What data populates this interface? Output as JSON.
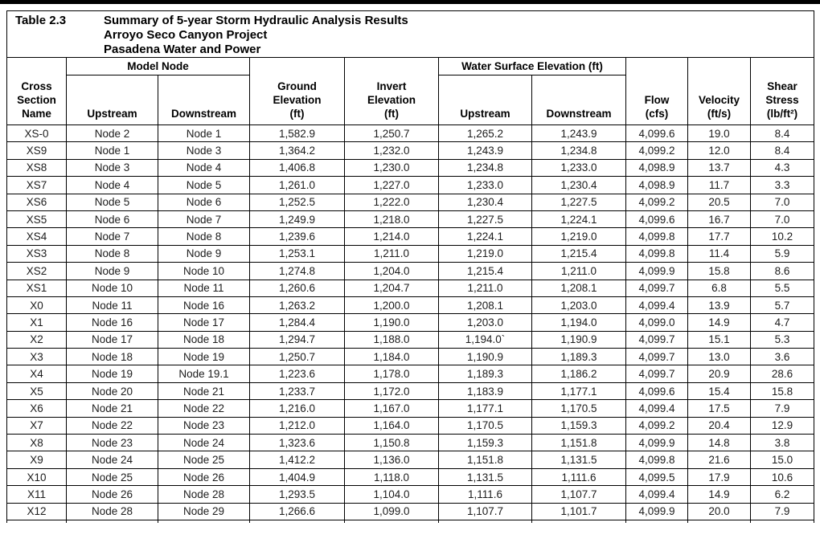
{
  "title_block": {
    "label": "Table 2.3",
    "lines": [
      "Summary of 5-year Storm Hydraulic Analysis Results",
      "Arroyo Seco Canyon Project",
      "Pasadena Water and Power"
    ]
  },
  "header": {
    "cross_section": "Cross\nSection\nName",
    "model_node": "Model Node",
    "upstream": "Upstream",
    "downstream": "Downstream",
    "ground_elevation": "Ground\nElevation\n(ft)",
    "invert_elevation": "Invert\nElevation\n(ft)",
    "water_surface_elevation": "Water Surface Elevation (ft)",
    "flow": "Flow\n(cfs)",
    "velocity": "Velocity\n(ft/s)",
    "shear_stress": "Shear\nStress\n(lb/ft²)"
  },
  "columns": [
    "cross_section_name",
    "node_upstream",
    "node_downstream",
    "ground_elevation_ft",
    "invert_elevation_ft",
    "wse_upstream_ft",
    "wse_downstream_ft",
    "flow_cfs",
    "velocity_ft_s",
    "shear_stress_lb_ft2"
  ],
  "rows": [
    [
      "XS-0",
      "Node 2",
      "Node 1",
      "1,582.9",
      "1,250.7",
      "1,265.2",
      "1,243.9",
      "4,099.6",
      "19.0",
      "8.4"
    ],
    [
      "XS9",
      "Node 1",
      "Node 3",
      "1,364.2",
      "1,232.0",
      "1,243.9",
      "1,234.8",
      "4,099.2",
      "12.0",
      "8.4"
    ],
    [
      "XS8",
      "Node 3",
      "Node 4",
      "1,406.8",
      "1,230.0",
      "1,234.8",
      "1,233.0",
      "4,098.9",
      "13.7",
      "4.3"
    ],
    [
      "XS7",
      "Node 4",
      "Node 5",
      "1,261.0",
      "1,227.0",
      "1,233.0",
      "1,230.4",
      "4,098.9",
      "11.7",
      "3.3"
    ],
    [
      "XS6",
      "Node 5",
      "Node 6",
      "1,252.5",
      "1,222.0",
      "1,230.4",
      "1,227.5",
      "4,099.2",
      "20.5",
      "7.0"
    ],
    [
      "XS5",
      "Node 6",
      "Node 7",
      "1,249.9",
      "1,218.0",
      "1,227.5",
      "1,224.1",
      "4,099.6",
      "16.7",
      "7.0"
    ],
    [
      "XS4",
      "Node 7",
      "Node 8",
      "1,239.6",
      "1,214.0",
      "1,224.1",
      "1,219.0",
      "4,099.8",
      "17.7",
      "10.2"
    ],
    [
      "XS3",
      "Node 8",
      "Node 9",
      "1,253.1",
      "1,211.0",
      "1,219.0",
      "1,215.4",
      "4,099.8",
      "11.4",
      "5.9"
    ],
    [
      "XS2",
      "Node 9",
      "Node 10",
      "1,274.8",
      "1,204.0",
      "1,215.4",
      "1,211.0",
      "4,099.9",
      "15.8",
      "8.6"
    ],
    [
      "XS1",
      "Node 10",
      "Node 11",
      "1,260.6",
      "1,204.7",
      "1,211.0",
      "1,208.1",
      "4,099.7",
      "6.8",
      "5.5"
    ],
    [
      "X0",
      "Node 11",
      "Node 16",
      "1,263.2",
      "1,200.0",
      "1,208.1",
      "1,203.0",
      "4,099.4",
      "13.9",
      "5.7"
    ],
    [
      "X1",
      "Node 16",
      "Node 17",
      "1,284.4",
      "1,190.0",
      "1,203.0",
      "1,194.0",
      "4,099.0",
      "14.9",
      "4.7"
    ],
    [
      "X2",
      "Node 17",
      "Node 18",
      "1,294.7",
      "1,188.0",
      "1,194.0`",
      "1,190.9",
      "4,099.7",
      "15.1",
      "5.3"
    ],
    [
      "X3",
      "Node 18",
      "Node 19",
      "1,250.7",
      "1,184.0",
      "1,190.9",
      "1,189.3",
      "4,099.7",
      "13.0",
      "3.6"
    ],
    [
      "X4",
      "Node 19",
      "Node 19.1",
      "1,223.6",
      "1,178.0",
      "1,189.3",
      "1,186.2",
      "4,099.7",
      "20.9",
      "28.6"
    ],
    [
      "X5",
      "Node 20",
      "Node 21",
      "1,233.7",
      "1,172.0",
      "1,183.9",
      "1,177.1",
      "4,099.6",
      "15.4",
      "15.8"
    ],
    [
      "X6",
      "Node 21",
      "Node 22",
      "1,216.0",
      "1,167.0",
      "1,177.1",
      "1,170.5",
      "4,099.4",
      "17.5",
      "7.9"
    ],
    [
      "X7",
      "Node 22",
      "Node 23",
      "1,212.0",
      "1,164.0",
      "1,170.5",
      "1,159.3",
      "4,099.2",
      "20.4",
      "12.9"
    ],
    [
      "X8",
      "Node 23",
      "Node 24",
      "1,323.6",
      "1,150.8",
      "1,159.3",
      "1,151.8",
      "4,099.9",
      "14.8",
      "3.8"
    ],
    [
      "X9",
      "Node 24",
      "Node 25",
      "1,412.2",
      "1,136.0",
      "1,151.8",
      "1,131.5",
      "4,099.8",
      "21.6",
      "15.0"
    ],
    [
      "X10",
      "Node 25",
      "Node 26",
      "1,404.9",
      "1,118.0",
      "1,131.5",
      "1,111.6",
      "4,099.5",
      "17.9",
      "10.6"
    ],
    [
      "X11",
      "Node 26",
      "Node 28",
      "1,293.5",
      "1,104.0",
      "1,111.6",
      "1,107.7",
      "4,099.4",
      "14.9",
      "6.2"
    ],
    [
      "X12",
      "Node 28",
      "Node 29",
      "1,266.6",
      "1,099.0",
      "1,107.7",
      "1,101.7",
      "4,099.9",
      "20.0",
      "7.9"
    ]
  ]
}
